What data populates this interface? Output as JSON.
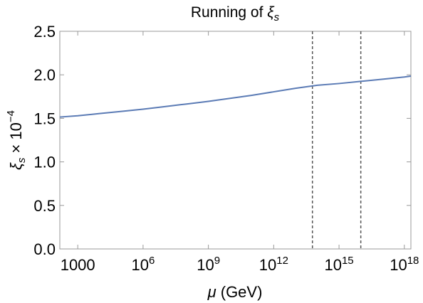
{
  "chart_data": {
    "type": "line",
    "title": "Running of ξs",
    "title_main": "Running of ",
    "title_symbol": "ξ",
    "title_sub": "s",
    "xlabel": "μ (GeV)",
    "xlabel_symbol": "μ",
    "xlabel_unit": " (GeV)",
    "ylabel": "ξs × 10−4",
    "ylabel_symbol": "ξ",
    "ylabel_sub": "s",
    "ylabel_times": " × 10",
    "ylabel_exp": "−4",
    "x_scale": "log",
    "xlim": [
      150,
      2e+18
    ],
    "ylim": [
      0,
      2.5
    ],
    "x_ticks": [
      {
        "value": 1000,
        "base": "1000",
        "exp": ""
      },
      {
        "value": 1000000.0,
        "base": "10",
        "exp": "6"
      },
      {
        "value": 1000000000.0,
        "base": "10",
        "exp": "9"
      },
      {
        "value": 1000000000000.0,
        "base": "10",
        "exp": "12"
      },
      {
        "value": 1000000000000000.0,
        "base": "10",
        "exp": "15"
      },
      {
        "value": 1e+18,
        "base": "10",
        "exp": "18"
      }
    ],
    "y_ticks": [
      {
        "value": 0.0,
        "label": "0.0"
      },
      {
        "value": 0.5,
        "label": "0.5"
      },
      {
        "value": 1.0,
        "label": "1.0"
      },
      {
        "value": 1.5,
        "label": "1.5"
      },
      {
        "value": 2.0,
        "label": "2.0"
      },
      {
        "value": 2.5,
        "label": "2.5"
      }
    ],
    "series": [
      {
        "color": "#5b7bb5",
        "x": [
          150,
          1000,
          10000.0,
          100000.0,
          1000000.0,
          10000000.0,
          100000000.0,
          1000000000.0,
          10000000000.0,
          100000000000.0,
          1000000000000.0,
          10000000000000.0,
          100000000000000.0,
          1000000000000000.0,
          1e+16,
          1e+17,
          1e+18,
          2e+18
        ],
        "y": [
          1.515,
          1.53,
          1.555,
          1.58,
          1.605,
          1.635,
          1.665,
          1.695,
          1.73,
          1.765,
          1.805,
          1.845,
          1.88,
          1.9,
          1.925,
          1.95,
          1.975,
          1.985
        ]
      }
    ],
    "vertical_lines": [
      {
        "x": 60000000000000.0,
        "style": "dashed",
        "color": "#555555"
      },
      {
        "x": 1e+16,
        "style": "dashed",
        "color": "#555555"
      }
    ],
    "grid": false,
    "frame_color": "#999999"
  }
}
